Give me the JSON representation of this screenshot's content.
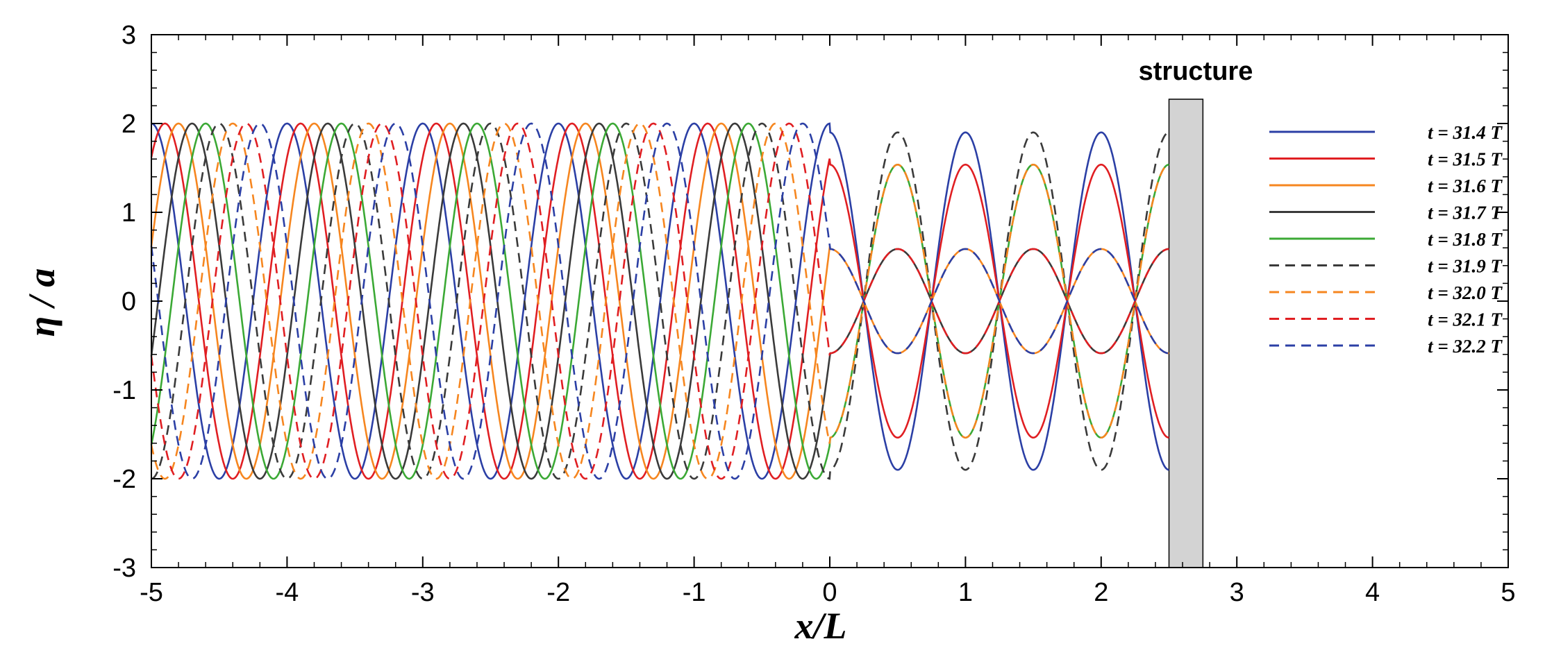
{
  "chart_data": {
    "type": "line",
    "title": "",
    "xlabel": "x/L",
    "ylabel": "η / a",
    "xlim": [
      -5,
      5
    ],
    "ylim": [
      -3,
      3
    ],
    "x_ticks": [
      "-5",
      "-4",
      "-3",
      "-2",
      "-1",
      "0",
      "1",
      "2",
      "3",
      "4",
      "5"
    ],
    "y_ticks": [
      "-3",
      "-2",
      "-1",
      "0",
      "1",
      "2",
      "3"
    ],
    "grid": false,
    "legend_position": "right",
    "structure": {
      "label": "structure",
      "x_range": [
        2.5,
        2.75
      ],
      "color": "#d3d3d3"
    },
    "series": [
      {
        "name": "t = 31.4 T",
        "color": "#2b3fa5",
        "dash": "solid",
        "phase": 0.0
      },
      {
        "name": "t = 31.5 T",
        "color": "#e01e22",
        "dash": "solid",
        "phase": 0.1
      },
      {
        "name": "t = 31.6 T",
        "color": "#f6861f",
        "dash": "solid",
        "phase": 0.2
      },
      {
        "name": "t = 31.7 T",
        "color": "#3a3a3a",
        "dash": "solid",
        "phase": 0.3
      },
      {
        "name": "t = 31.8 T",
        "color": "#3ba935",
        "dash": "solid",
        "phase": 0.4
      },
      {
        "name": "t = 31.9 T",
        "color": "#3a3a3a",
        "dash": "dashed",
        "phase": 0.5
      },
      {
        "name": "t = 32.0 T",
        "color": "#f6861f",
        "dash": "dashed",
        "phase": 0.6
      },
      {
        "name": "t = 32.1 T",
        "color": "#e01e22",
        "dash": "dashed",
        "phase": 0.7
      },
      {
        "name": "t = 32.2 T",
        "color": "#2b3fa5",
        "dash": "dashed",
        "phase": 0.8
      }
    ],
    "model": {
      "incident_region": [
        -5,
        0
      ],
      "incident_amplitude": 2.0,
      "standing_region": [
        0,
        2.5
      ],
      "standing_amplitude": 1.9
    }
  }
}
